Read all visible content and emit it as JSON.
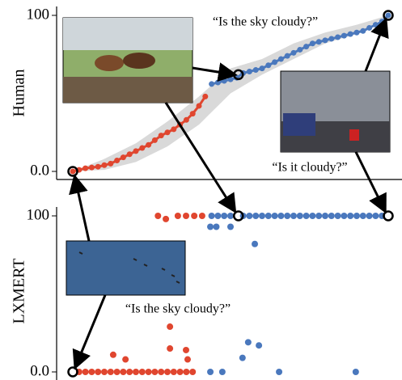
{
  "chart_data": [
    {
      "type": "line",
      "ylabel": "Human",
      "ylim": [
        -5,
        103
      ],
      "yticks": [
        {
          "value": 0,
          "label": "0.0"
        },
        100
      ],
      "xlim": [
        0,
        100
      ],
      "series": [
        {
          "color": "#e0462f",
          "x": [
            0,
            2,
            4,
            6,
            8,
            10,
            12,
            14,
            16,
            18,
            20,
            22,
            24,
            26,
            28,
            30,
            32,
            34,
            36,
            38,
            40,
            42
          ],
          "values": [
            0,
            1,
            2,
            2.5,
            3,
            4,
            5,
            7,
            9,
            11,
            13,
            15,
            17,
            20,
            23,
            25,
            27,
            30,
            33,
            37,
            42,
            48
          ]
        },
        {
          "color": "#4a78bd",
          "x": [
            44,
            46,
            48,
            50,
            52,
            54,
            56,
            58,
            60,
            62,
            64,
            66,
            68,
            70,
            72,
            74,
            76,
            78,
            80,
            82,
            84,
            86,
            88,
            90,
            92,
            94,
            96,
            98,
            100
          ],
          "values": [
            56,
            57,
            58,
            59,
            60,
            63,
            64,
            65,
            66,
            68,
            70,
            72,
            74,
            76,
            78,
            80,
            82,
            83,
            84,
            85,
            86,
            87,
            88,
            89,
            90,
            92,
            94,
            96,
            100
          ]
        }
      ],
      "band": {
        "color": "#d9d9d9",
        "x": [
          0,
          10,
          20,
          30,
          40,
          50,
          60,
          70,
          80,
          90,
          100
        ],
        "lower": [
          0,
          1,
          6,
          16,
          30,
          50,
          62,
          72,
          82,
          88,
          100
        ],
        "upper": [
          0,
          8,
          18,
          32,
          48,
          66,
          72,
          82,
          89,
          94,
          100
        ]
      },
      "highlights": {
        "x": [
          0,
          52.5,
          100
        ],
        "values": [
          0,
          62,
          100
        ]
      },
      "annotations": [
        "“Is the sky cloudy?”",
        "“Is it cloudy?”"
      ]
    },
    {
      "type": "scatter",
      "ylabel": "LXMERT",
      "ylim": [
        -5,
        103
      ],
      "yticks": [
        {
          "value": 0,
          "label": "0.0"
        },
        100
      ],
      "xlim": [
        0,
        100
      ],
      "series": [
        {
          "color": "#e0462f",
          "x": [
            27,
            29.5,
            33.3,
            35.9,
            38.5,
            41,
            12.8,
            16.7,
            30.8,
            35.9,
            36.4,
            30.8,
            2,
            4,
            6,
            8,
            10,
            12,
            14,
            16,
            18,
            20,
            22,
            24,
            26,
            28,
            30,
            32,
            34,
            36,
            38
          ],
          "values": [
            100,
            98,
            100,
            100,
            100,
            100,
            11,
            8,
            15,
            14,
            8,
            29,
            0,
            0,
            0,
            0,
            0,
            0,
            0,
            0,
            0,
            0,
            0,
            0,
            0,
            0,
            0,
            0,
            0,
            0,
            0
          ]
        },
        {
          "color": "#4a78bd",
          "x": [
            44,
            46,
            48,
            50,
            54,
            56,
            58,
            60,
            62,
            64,
            66,
            68,
            70,
            72,
            74,
            76,
            78,
            80,
            82,
            84,
            86,
            88,
            90,
            92,
            94,
            96,
            98,
            43.6,
            45.5,
            50,
            57.7,
            43.6,
            47.4,
            65.4,
            89.7,
            53.8,
            55.6,
            59
          ],
          "values": [
            100,
            100,
            100,
            100,
            100,
            100,
            100,
            100,
            100,
            100,
            100,
            100,
            100,
            100,
            100,
            100,
            100,
            100,
            100,
            100,
            100,
            100,
            100,
            100,
            100,
            100,
            100,
            93,
            93,
            93,
            82,
            0,
            0,
            0,
            0,
            9,
            19,
            17
          ]
        }
      ],
      "highlights": {
        "x": [
          0,
          52.5,
          100
        ],
        "values": [
          0,
          100,
          100
        ]
      },
      "annotations": [
        "“Is the sky cloudy?”"
      ]
    }
  ]
}
